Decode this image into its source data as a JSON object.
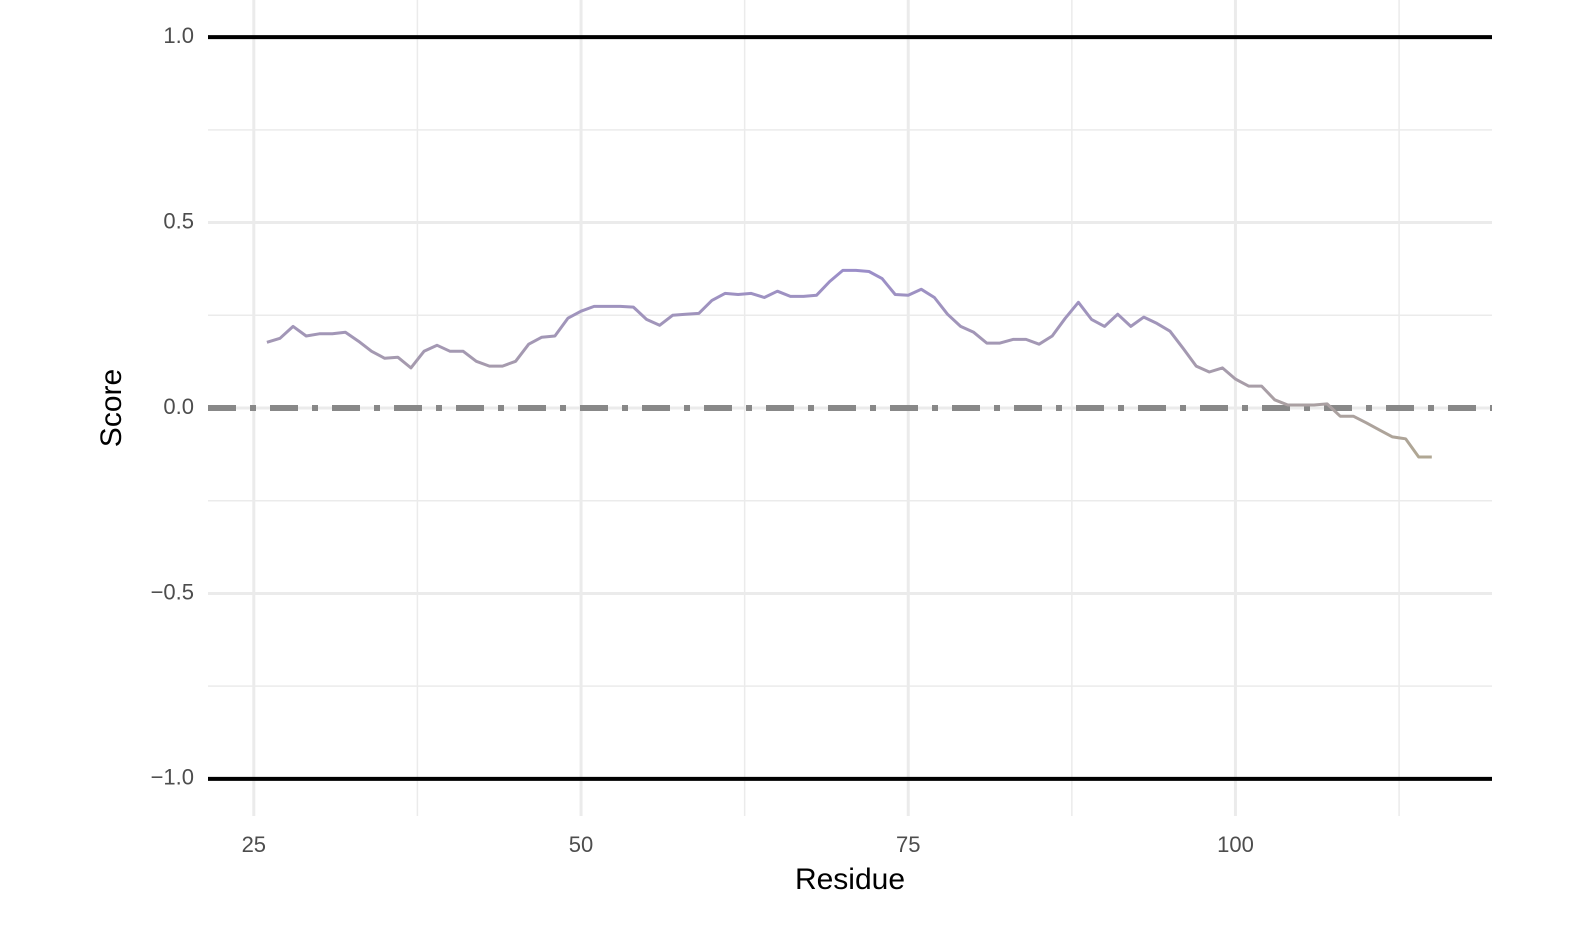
{
  "chart_data": {
    "type": "line",
    "x_label": "Residue",
    "y_label": "Score",
    "x": [
      26,
      27,
      28,
      29,
      30,
      31,
      32,
      33,
      34,
      35,
      36,
      37,
      38,
      39,
      40,
      41,
      42,
      43,
      44,
      45,
      46,
      47,
      48,
      49,
      50,
      51,
      52,
      53,
      54,
      55,
      56,
      57,
      58,
      59,
      60,
      61,
      62,
      63,
      64,
      65,
      66,
      67,
      68,
      69,
      70,
      71,
      72,
      73,
      74,
      75,
      76,
      77,
      78,
      79,
      80,
      81,
      82,
      83,
      84,
      85,
      86,
      87,
      88,
      89,
      90,
      91,
      92,
      93,
      94,
      95,
      96,
      97,
      98,
      99,
      100,
      101,
      102,
      103,
      104,
      105,
      106,
      107,
      108,
      109,
      110,
      111,
      112,
      113,
      114,
      115
    ],
    "values": [
      0.177,
      0.188,
      0.22,
      0.194,
      0.2,
      0.2,
      0.204,
      0.18,
      0.153,
      0.134,
      0.137,
      0.108,
      0.153,
      0.169,
      0.153,
      0.153,
      0.126,
      0.113,
      0.113,
      0.126,
      0.172,
      0.191,
      0.194,
      0.242,
      0.261,
      0.274,
      0.274,
      0.274,
      0.272,
      0.239,
      0.223,
      0.25,
      0.253,
      0.255,
      0.29,
      0.309,
      0.306,
      0.309,
      0.298,
      0.315,
      0.301,
      0.301,
      0.304,
      0.341,
      0.371,
      0.371,
      0.368,
      0.349,
      0.306,
      0.304,
      0.32,
      0.298,
      0.253,
      0.22,
      0.204,
      0.175,
      0.175,
      0.185,
      0.185,
      0.172,
      0.194,
      0.242,
      0.285,
      0.239,
      0.22,
      0.253,
      0.22,
      0.245,
      0.228,
      0.207,
      0.161,
      0.113,
      0.097,
      0.108,
      0.078,
      0.059,
      0.059,
      0.022,
      0.008,
      0.008,
      0.008,
      0.011,
      -0.022,
      -0.022,
      -0.04,
      -0.059,
      -0.078,
      -0.083,
      -0.132,
      -0.132
    ],
    "color_high": "#9b8ec9",
    "color_low": "#b0a793",
    "xlim": [
      21.5,
      119.6
    ],
    "xticks": [
      25,
      50,
      75,
      100
    ],
    "x_minor_ticks": [
      37.5,
      62.5,
      87.5,
      112.5
    ],
    "ylim": [
      -1.1,
      1.1
    ],
    "yticks": [
      {
        "value": -1,
        "label": "−1.0"
      },
      {
        "value": -0.5,
        "label": "−0.5"
      },
      {
        "value": 0,
        "label": "0.0"
      },
      0.5,
      {
        "value": 1,
        "label": "1.0"
      }
    ],
    "y_minor_ticks": [
      -0.75,
      -0.25,
      0.25,
      0.75
    ],
    "solid_hlines": [
      1,
      -1
    ],
    "dashed_hline": 0,
    "grid": true
  }
}
